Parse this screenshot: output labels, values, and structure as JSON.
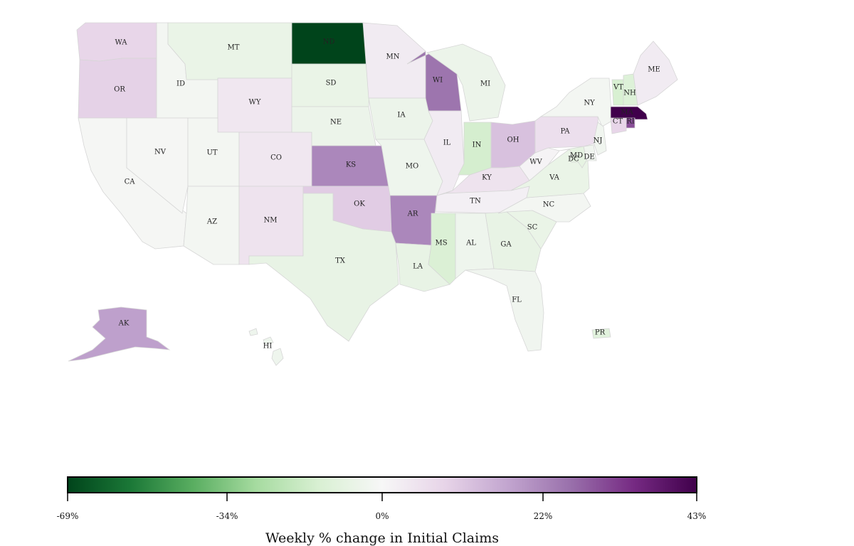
{
  "chart_data": {
    "type": "choropleth",
    "title": "",
    "colorbar": {
      "label": "Weekly % change in Initial Claims",
      "min": -69,
      "max": 43,
      "ticks": [
        "-69%",
        "-34%",
        "0%",
        "22%",
        "43%"
      ],
      "colors": [
        "#00441b",
        "#1b7837",
        "#5aae61",
        "#a6dba0",
        "#d9f0d3",
        "#f7f7f7",
        "#e7d4e8",
        "#c2a5cf",
        "#9970ab",
        "#762a83",
        "#40004b"
      ]
    },
    "states": [
      {
        "code": "WA",
        "value": 8
      },
      {
        "code": "OR",
        "value": 9
      },
      {
        "code": "CA",
        "value": -1
      },
      {
        "code": "ID",
        "value": -2
      },
      {
        "code": "NV",
        "value": -1
      },
      {
        "code": "MT",
        "value": -6
      },
      {
        "code": "WY",
        "value": 4
      },
      {
        "code": "UT",
        "value": -2
      },
      {
        "code": "AZ",
        "value": -2
      },
      {
        "code": "CO",
        "value": 4
      },
      {
        "code": "NM",
        "value": 5
      },
      {
        "code": "ND",
        "value": -69
      },
      {
        "code": "SD",
        "value": -6
      },
      {
        "code": "NE",
        "value": -5
      },
      {
        "code": "KS",
        "value": 22
      },
      {
        "code": "OK",
        "value": 10
      },
      {
        "code": "TX",
        "value": -7
      },
      {
        "code": "MN",
        "value": 3
      },
      {
        "code": "IA",
        "value": -5
      },
      {
        "code": "MO",
        "value": -4
      },
      {
        "code": "AR",
        "value": 22
      },
      {
        "code": "LA",
        "value": -7
      },
      {
        "code": "WI",
        "value": 25
      },
      {
        "code": "IL",
        "value": 3
      },
      {
        "code": "MI",
        "value": -5
      },
      {
        "code": "IN",
        "value": -15
      },
      {
        "code": "OH",
        "value": 12
      },
      {
        "code": "KY",
        "value": 5
      },
      {
        "code": "TN",
        "value": 2
      },
      {
        "code": "MS",
        "value": -13
      },
      {
        "code": "AL",
        "value": -4
      },
      {
        "code": "GA",
        "value": -7
      },
      {
        "code": "FL",
        "value": -3
      },
      {
        "code": "SC",
        "value": -6
      },
      {
        "code": "NC",
        "value": -2
      },
      {
        "code": "VA",
        "value": -6
      },
      {
        "code": "WV",
        "value": 1
      },
      {
        "code": "PA",
        "value": 6
      },
      {
        "code": "NY",
        "value": -2
      },
      {
        "code": "NJ",
        "value": -3
      },
      {
        "code": "DE",
        "value": -3
      },
      {
        "code": "MD",
        "value": -8
      },
      {
        "code": "DC",
        "value": -8
      },
      {
        "code": "VT",
        "value": -14
      },
      {
        "code": "NH",
        "value": -12
      },
      {
        "code": "ME",
        "value": 3
      },
      {
        "code": "MA",
        "value": 43
      },
      {
        "code": "CT",
        "value": 8
      },
      {
        "code": "RI",
        "value": 30
      },
      {
        "code": "AK",
        "value": 18
      },
      {
        "code": "HI",
        "value": -4
      },
      {
        "code": "PR",
        "value": -10
      }
    ]
  }
}
